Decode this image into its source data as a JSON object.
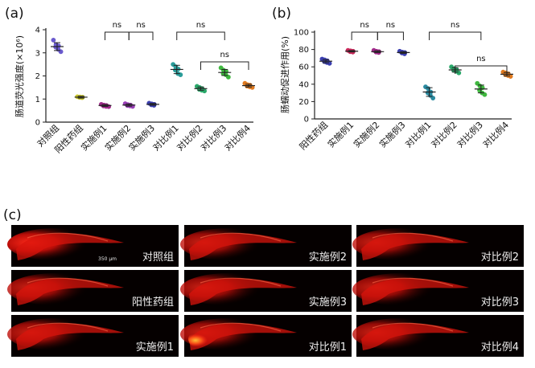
{
  "chart_data": [
    {
      "panel": "(a)",
      "type": "scatter",
      "ylabel": "肠道荧光强度(×10⁶)",
      "ylim": [
        0,
        4
      ],
      "yticks": [
        0,
        1,
        2,
        3,
        4
      ],
      "categories": [
        "对照组",
        "阳性药组",
        "实施例1",
        "实施例2",
        "实施例3",
        "对比例1",
        "对比例2",
        "对比例3",
        "对比例4"
      ],
      "colors": [
        "#6a5acd",
        "#c9c62a",
        "#a02a8a",
        "#9a3fb8",
        "#3b3fb0",
        "#2a9d9a",
        "#2aa86a",
        "#3fb83f",
        "#e07a1f"
      ],
      "series": [
        {
          "category": "对照组",
          "mean": 3.27,
          "sd": 0.17,
          "points": [
            3.55,
            3.35,
            3.3,
            3.25,
            3.15,
            3.05
          ]
        },
        {
          "category": "阳性药组",
          "mean": 1.08,
          "sd": 0.04,
          "points": [
            1.1,
            1.09,
            1.08,
            1.07,
            1.06
          ]
        },
        {
          "category": "实施例1",
          "mean": 0.72,
          "sd": 0.04,
          "points": [
            0.77,
            0.74,
            0.72,
            0.7,
            0.68,
            0.67
          ]
        },
        {
          "category": "实施例2",
          "mean": 0.74,
          "sd": 0.05,
          "points": [
            0.8,
            0.76,
            0.74,
            0.72,
            0.7,
            0.68
          ]
        },
        {
          "category": "实施例3",
          "mean": 0.77,
          "sd": 0.04,
          "points": [
            0.82,
            0.79,
            0.77,
            0.75,
            0.73
          ]
        },
        {
          "category": "对比例1",
          "mean": 2.28,
          "sd": 0.18,
          "points": [
            2.5,
            2.4,
            2.3,
            2.25,
            2.1,
            2.05
          ]
        },
        {
          "category": "对比例2",
          "mean": 1.45,
          "sd": 0.07,
          "points": [
            1.55,
            1.5,
            1.45,
            1.42,
            1.38,
            1.35
          ]
        },
        {
          "category": "对比例3",
          "mean": 2.15,
          "sd": 0.13,
          "points": [
            2.35,
            2.25,
            2.2,
            2.1,
            2.05,
            1.95
          ]
        },
        {
          "category": "对比例4",
          "mean": 1.58,
          "sd": 0.06,
          "points": [
            1.68,
            1.62,
            1.6,
            1.56,
            1.53,
            1.5
          ]
        }
      ],
      "annotations": [
        {
          "text": "ns",
          "from": "实施例1",
          "to": "实施例2"
        },
        {
          "text": "ns",
          "from": "实施例2",
          "to": "实施例3"
        },
        {
          "text": "ns",
          "from": "对比例1",
          "to": "对比例3"
        },
        {
          "text": "ns",
          "from": "对比例2",
          "to": "对比例4"
        }
      ]
    },
    {
      "panel": "(b)",
      "type": "scatter",
      "ylabel": "肠蠕动促进作用(%)",
      "ylim": [
        0,
        100
      ],
      "yticks": [
        0,
        20,
        40,
        60,
        80,
        100
      ],
      "categories": [
        "阳性药组",
        "实施例1",
        "实施例2",
        "实施例3",
        "对比例1",
        "对比例2",
        "对比例3",
        "对比例4"
      ],
      "colors": [
        "#3b3fb0",
        "#c8285a",
        "#a02a8a",
        "#3b3fb0",
        "#2a8aa0",
        "#2aa86a",
        "#3fb83f",
        "#e07a1f"
      ],
      "series": [
        {
          "category": "阳性药组",
          "mean": 66.5,
          "sd": 1.8,
          "points": [
            69,
            68,
            67,
            66,
            65,
            64
          ]
        },
        {
          "category": "实施例1",
          "mean": 78,
          "sd": 0.8,
          "points": [
            79,
            78.5,
            78,
            77.5,
            77
          ]
        },
        {
          "category": "实施例2",
          "mean": 77.5,
          "sd": 1.0,
          "points": [
            79,
            78,
            77.5,
            77,
            76.5
          ]
        },
        {
          "category": "实施例3",
          "mean": 76.5,
          "sd": 1.0,
          "points": [
            78,
            77,
            76.5,
            76,
            75
          ]
        },
        {
          "category": "对比例1",
          "mean": 31,
          "sd": 5.0,
          "points": [
            37,
            35,
            31,
            30,
            27,
            24
          ]
        },
        {
          "category": "对比例2",
          "mean": 56.5,
          "sd": 2.5,
          "points": [
            60,
            58,
            57,
            56,
            55,
            53
          ]
        },
        {
          "category": "对比例3",
          "mean": 34.5,
          "sd": 4.5,
          "points": [
            41,
            38,
            36,
            33,
            30,
            28
          ]
        },
        {
          "category": "对比例4",
          "mean": 51.5,
          "sd": 2.0,
          "points": [
            54,
            53,
            52,
            51,
            50,
            49
          ]
        }
      ],
      "annotations": [
        {
          "text": "ns",
          "from": "实施例1",
          "to": "实施例2"
        },
        {
          "text": "ns",
          "from": "实施例2",
          "to": "实施例3"
        },
        {
          "text": "ns",
          "from": "对比例1",
          "to": "对比例3"
        },
        {
          "text": "ns",
          "from": "对比例2",
          "to": "对比例4"
        }
      ]
    }
  ],
  "figure": {
    "panel_a_label": "(a)",
    "panel_b_label": "(b)",
    "panel_c_label": "(c)",
    "scale_bar_text": "350 μm",
    "images": [
      [
        "对照组",
        "实施例2",
        "对比例2"
      ],
      [
        "阳性药组",
        "实施例3",
        "对比例3"
      ],
      [
        "实施例1",
        "对比例1",
        "对比例4"
      ]
    ]
  }
}
